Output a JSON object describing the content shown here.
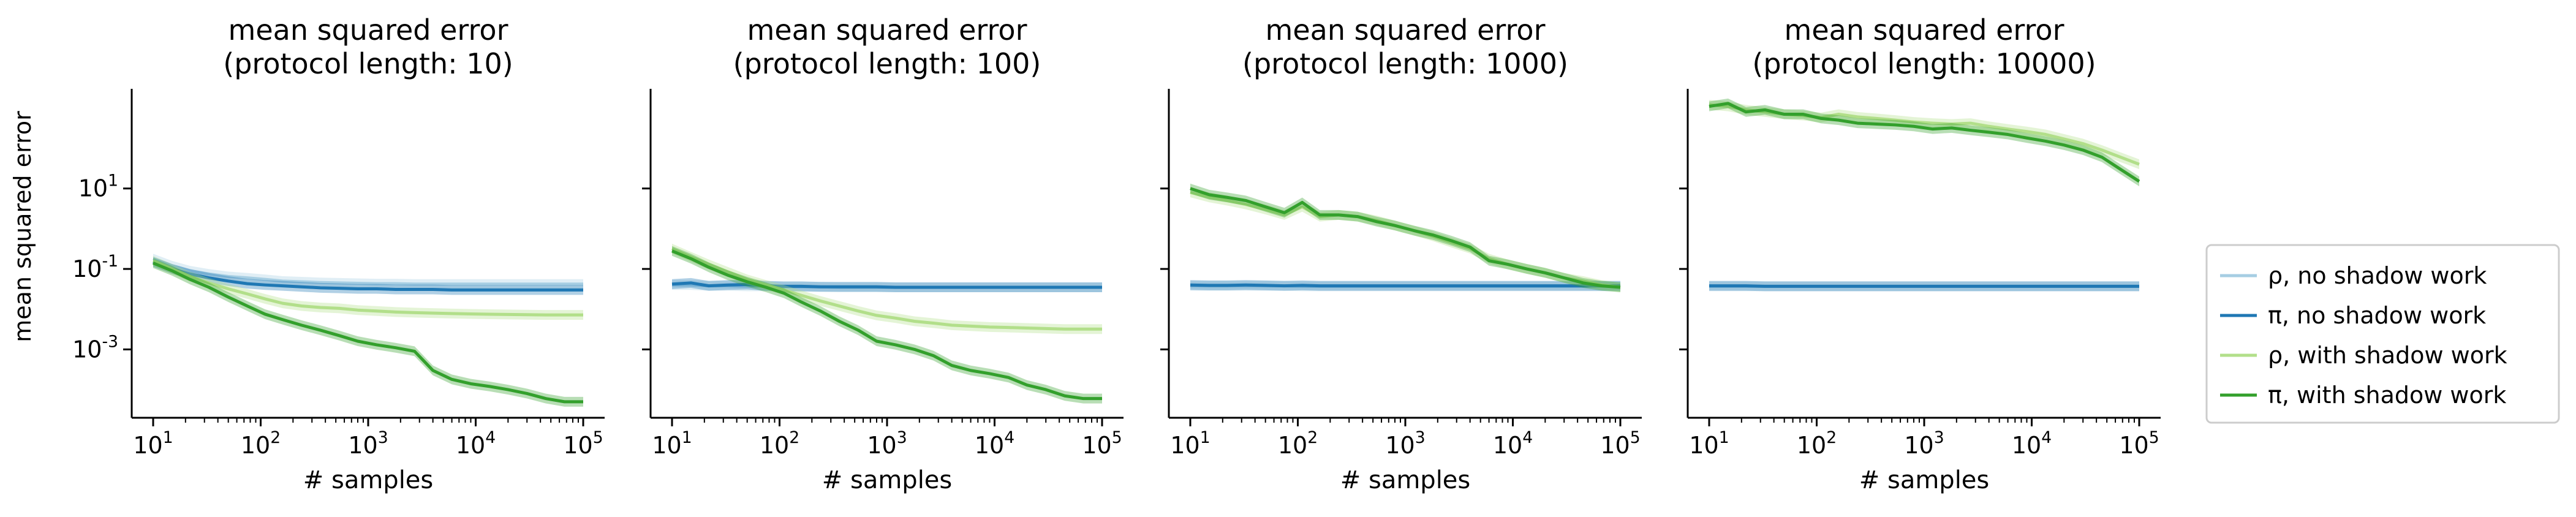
{
  "figure": {
    "ylabel": "mean squared error"
  },
  "legend": {
    "placement": "right",
    "entries": [
      {
        "label": "ρ, no shadow work",
        "color": "#a6cee3"
      },
      {
        "label": "π, no shadow work",
        "color": "#1f78b4"
      },
      {
        "label": "ρ, with shadow work",
        "color": "#b2df8a"
      },
      {
        "label": "π, with shadow work",
        "color": "#33a02c"
      }
    ]
  },
  "chart_data": [
    {
      "type": "line",
      "title": "mean squared error\n(protocol length: 10)",
      "xlabel": "# samples",
      "ylabel": "mean squared error",
      "x_scale": "log",
      "y_scale": "log",
      "xlim": [
        10,
        100000
      ],
      "ylim": [
        2e-05,
        3000
      ],
      "x_ticks": [
        "10^1",
        "10^2",
        "10^3",
        "10^4",
        "10^5"
      ],
      "y_ticks": [
        "10^1",
        "10^-1",
        "10^-3"
      ],
      "x": [
        10,
        15,
        22,
        33,
        50,
        75,
        110,
        160,
        240,
        360,
        540,
        800,
        1200,
        1800,
        2700,
        4000,
        6000,
        9000,
        13500,
        20000,
        30000,
        45000,
        67000,
        100000
      ],
      "series": [
        {
          "name": "ρ, no shadow work",
          "values": [
            0.18,
            0.12,
            0.09,
            0.075,
            0.065,
            0.06,
            0.055,
            0.05,
            0.048,
            0.046,
            0.045,
            0.044,
            0.043,
            0.043,
            0.042,
            0.042,
            0.042,
            0.042,
            0.042,
            0.042,
            0.042,
            0.042,
            0.042,
            0.042
          ]
        },
        {
          "name": "π, no shadow work",
          "values": [
            0.15,
            0.1,
            0.075,
            0.06,
            0.05,
            0.043,
            0.04,
            0.038,
            0.036,
            0.034,
            0.033,
            0.032,
            0.032,
            0.031,
            0.031,
            0.031,
            0.03,
            0.03,
            0.03,
            0.03,
            0.03,
            0.03,
            0.03,
            0.03
          ]
        },
        {
          "name": "ρ, with shadow work",
          "values": [
            0.16,
            0.1,
            0.065,
            0.045,
            0.032,
            0.024,
            0.018,
            0.014,
            0.012,
            0.011,
            0.0105,
            0.0095,
            0.009,
            0.0085,
            0.0082,
            0.008,
            0.0078,
            0.0076,
            0.0075,
            0.0074,
            0.0073,
            0.0072,
            0.0072,
            0.0072
          ]
        },
        {
          "name": "π, with shadow work",
          "values": [
            0.14,
            0.09,
            0.055,
            0.035,
            0.02,
            0.012,
            0.0075,
            0.0055,
            0.004,
            0.003,
            0.0022,
            0.0016,
            0.0013,
            0.0011,
            0.0009,
            0.0003,
            0.00018,
            0.00014,
            0.00012,
            0.0001,
            8e-05,
            6e-05,
            5e-05,
            5e-05
          ]
        }
      ]
    },
    {
      "type": "line",
      "title": "mean squared error\n(protocol length: 100)",
      "xlabel": "# samples",
      "ylabel": "",
      "x_scale": "log",
      "y_scale": "log",
      "xlim": [
        10,
        100000
      ],
      "ylim": [
        2e-05,
        3000
      ],
      "x_ticks": [
        "10^1",
        "10^2",
        "10^3",
        "10^4",
        "10^5"
      ],
      "y_ticks": [
        "10^1",
        "10^-1",
        "10^-3"
      ],
      "x": [
        10,
        15,
        22,
        33,
        50,
        75,
        110,
        160,
        240,
        360,
        540,
        800,
        1200,
        1800,
        2700,
        4000,
        6000,
        9000,
        13500,
        20000,
        30000,
        45000,
        67000,
        100000
      ],
      "series": [
        {
          "name": "ρ, no shadow work",
          "values": [
            0.04,
            0.04,
            0.038,
            0.038,
            0.037,
            0.037,
            0.036,
            0.036,
            0.036,
            0.035,
            0.035,
            0.035,
            0.035,
            0.035,
            0.035,
            0.035,
            0.035,
            0.035,
            0.035,
            0.035,
            0.035,
            0.035,
            0.035,
            0.035
          ]
        },
        {
          "name": "π, no shadow work",
          "values": [
            0.042,
            0.045,
            0.038,
            0.04,
            0.041,
            0.038,
            0.037,
            0.037,
            0.036,
            0.036,
            0.036,
            0.036,
            0.035,
            0.035,
            0.035,
            0.035,
            0.035,
            0.035,
            0.035,
            0.035,
            0.035,
            0.035,
            0.035,
            0.035
          ]
        },
        {
          "name": "ρ, with shadow work",
          "values": [
            0.32,
            0.2,
            0.13,
            0.085,
            0.055,
            0.04,
            0.03,
            0.022,
            0.016,
            0.012,
            0.009,
            0.007,
            0.006,
            0.005,
            0.0045,
            0.004,
            0.0038,
            0.0036,
            0.0035,
            0.0034,
            0.0033,
            0.0032,
            0.0032,
            0.0032
          ]
        },
        {
          "name": "π, with shadow work",
          "values": [
            0.28,
            0.18,
            0.11,
            0.07,
            0.048,
            0.035,
            0.025,
            0.015,
            0.009,
            0.005,
            0.003,
            0.0016,
            0.0013,
            0.001,
            0.0007,
            0.0004,
            0.0003,
            0.00025,
            0.0002,
            0.00013,
            0.0001,
            7e-05,
            6e-05,
            6e-05
          ]
        }
      ]
    },
    {
      "type": "line",
      "title": "mean squared error\n(protocol length: 1000)",
      "xlabel": "# samples",
      "ylabel": "",
      "x_scale": "log",
      "y_scale": "log",
      "xlim": [
        10,
        100000
      ],
      "ylim": [
        2e-05,
        3000
      ],
      "x_ticks": [
        "10^1",
        "10^2",
        "10^3",
        "10^4",
        "10^5"
      ],
      "y_ticks": [
        "10^1",
        "10^-1",
        "10^-3"
      ],
      "x": [
        10,
        15,
        22,
        33,
        50,
        75,
        110,
        160,
        240,
        360,
        540,
        800,
        1200,
        1800,
        2700,
        4000,
        6000,
        9000,
        13500,
        20000,
        30000,
        45000,
        67000,
        100000
      ],
      "series": [
        {
          "name": "ρ, no shadow work",
          "values": [
            0.038,
            0.038,
            0.038,
            0.038,
            0.038,
            0.038,
            0.037,
            0.037,
            0.037,
            0.037,
            0.037,
            0.037,
            0.037,
            0.037,
            0.037,
            0.037,
            0.037,
            0.037,
            0.037,
            0.037,
            0.037,
            0.037,
            0.037,
            0.037
          ]
        },
        {
          "name": "π, no shadow work",
          "values": [
            0.04,
            0.039,
            0.039,
            0.04,
            0.039,
            0.038,
            0.039,
            0.038,
            0.038,
            0.038,
            0.038,
            0.038,
            0.038,
            0.038,
            0.038,
            0.038,
            0.038,
            0.038,
            0.038,
            0.038,
            0.038,
            0.038,
            0.038,
            0.038
          ]
        },
        {
          "name": "ρ, with shadow work",
          "values": [
            8,
            6,
            5,
            4,
            3,
            2.2,
            3.5,
            2,
            2.2,
            2,
            1.6,
            1.2,
            0.9,
            0.65,
            0.45,
            0.32,
            0.18,
            0.13,
            0.1,
            0.08,
            0.06,
            0.05,
            0.04,
            0.035
          ]
        },
        {
          "name": "π, with shadow work",
          "values": [
            10,
            7,
            6,
            5,
            3.5,
            2.5,
            4.5,
            2.2,
            2.2,
            2,
            1.5,
            1.2,
            0.9,
            0.7,
            0.5,
            0.35,
            0.16,
            0.13,
            0.1,
            0.08,
            0.06,
            0.045,
            0.038,
            0.035
          ]
        }
      ]
    },
    {
      "type": "line",
      "title": "mean squared error\n(protocol length: 10000)",
      "xlabel": "# samples",
      "ylabel": "",
      "x_scale": "log",
      "y_scale": "log",
      "xlim": [
        10,
        100000
      ],
      "ylim": [
        2e-05,
        3000
      ],
      "x_ticks": [
        "10^1",
        "10^2",
        "10^3",
        "10^4",
        "10^5"
      ],
      "y_ticks": [
        "10^1",
        "10^-1",
        "10^-3"
      ],
      "x": [
        10,
        15,
        22,
        33,
        50,
        75,
        110,
        160,
        240,
        360,
        540,
        800,
        1200,
        1800,
        2700,
        4000,
        6000,
        9000,
        13500,
        20000,
        30000,
        45000,
        67000,
        100000
      ],
      "series": [
        {
          "name": "ρ, no shadow work",
          "values": [
            0.037,
            0.037,
            0.037,
            0.037,
            0.037,
            0.037,
            0.037,
            0.037,
            0.037,
            0.037,
            0.037,
            0.037,
            0.037,
            0.037,
            0.037,
            0.037,
            0.037,
            0.037,
            0.037,
            0.037,
            0.037,
            0.037,
            0.037,
            0.037
          ]
        },
        {
          "name": "π, no shadow work",
          "values": [
            0.038,
            0.038,
            0.038,
            0.037,
            0.037,
            0.037,
            0.037,
            0.037,
            0.037,
            0.037,
            0.037,
            0.037,
            0.037,
            0.037,
            0.037,
            0.037,
            0.037,
            0.037,
            0.037,
            0.037,
            0.037,
            0.037,
            0.037,
            0.037
          ]
        },
        {
          "name": "ρ, with shadow work",
          "values": [
            1200,
            1100,
            900,
            800,
            700,
            650,
            580,
            700,
            600,
            550,
            500,
            450,
            420,
            400,
            420,
            350,
            300,
            260,
            220,
            170,
            130,
            90,
            60,
            40
          ]
        },
        {
          "name": "π, with shadow work",
          "values": [
            1100,
            1300,
            800,
            900,
            700,
            700,
            550,
            500,
            420,
            400,
            380,
            350,
            300,
            320,
            280,
            250,
            220,
            180,
            150,
            120,
            90,
            60,
            30,
            15
          ]
        }
      ]
    }
  ]
}
